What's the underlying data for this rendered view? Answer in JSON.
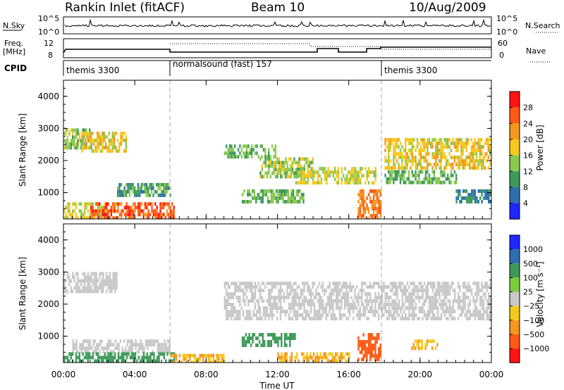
{
  "header": {
    "station": "Rankin Inlet (fitACF)",
    "beam": "Beam 10",
    "date": "10/Aug/2009"
  },
  "strips": {
    "nsky": {
      "label": "N.Sky",
      "ticks": [
        "10^5",
        "10^0"
      ],
      "right_label": "N.Search",
      "right_ticks": [
        "10^5",
        "10^0"
      ]
    },
    "freq": {
      "label": "Freq.",
      "unit": "[MHz]",
      "ticks": [
        "12",
        "8"
      ],
      "right_label": "Nave",
      "right_ticks": [
        "60",
        "0"
      ]
    },
    "cpid": {
      "label": "CPID",
      "segments": [
        {
          "start": 0.0,
          "end": 6.0,
          "name": "themis 3300"
        },
        {
          "start": 6.0,
          "end": 18.0,
          "name": "normalsound (fast) 157"
        },
        {
          "start": 18.0,
          "end": 24.0,
          "name": "themis 3300"
        }
      ]
    }
  },
  "panels": {
    "power": {
      "ylabel": "Slant Range [km]",
      "cblabel": "Power [dB]",
      "cbticks": [
        "28",
        "24",
        "20",
        "16",
        "12",
        "8",
        "4"
      ]
    },
    "velocity": {
      "ylabel": "Slant Range [km]",
      "cblabel": "Velocity [m s⁻¹]",
      "cbticks": [
        "1000",
        "500",
        "100",
        "25",
        "−25",
        "−100",
        "−500",
        "−1000"
      ]
    }
  },
  "colors": {
    "power_scale": [
      "#1e28ff",
      "#2e6fb0",
      "#3d9a5a",
      "#8cc850",
      "#f5c81e",
      "#f5961e",
      "#ff5a14",
      "#ff1414"
    ],
    "velocity_scale": [
      "#1e28ff",
      "#2e6fb0",
      "#3d9a5a",
      "#7ccd3c",
      "#c8c8c8",
      "#f5c81e",
      "#f5961e",
      "#ff5a14",
      "#ff1414"
    ]
  },
  "chart_data": [
    {
      "type": "heatmap",
      "title": "Power",
      "xlabel": "Time UT",
      "ylabel": "Slant Range [km]",
      "xlim": [
        0,
        24
      ],
      "ylim": [
        180,
        4500
      ],
      "xticks": [
        "00:00",
        "04:00",
        "08:00",
        "12:00",
        "16:00",
        "20:00",
        "00:00"
      ],
      "yticks": [
        1000,
        2000,
        3000,
        4000
      ],
      "colorbar": {
        "label": "Power [dB]",
        "ticks": [
          4,
          8,
          12,
          16,
          20,
          24,
          28
        ]
      },
      "regions": [
        {
          "t": [
            0.0,
            1.6
          ],
          "r": [
            2450,
            3000
          ],
          "value": 14
        },
        {
          "t": [
            1.0,
            3.5
          ],
          "r": [
            2300,
            2900
          ],
          "value": 18
        },
        {
          "t": [
            0.0,
            2.5
          ],
          "r": [
            200,
            700
          ],
          "value": 16
        },
        {
          "t": [
            1.5,
            6.2
          ],
          "r": [
            200,
            700
          ],
          "value": 26
        },
        {
          "t": [
            3.0,
            6.0
          ],
          "r": [
            900,
            1300
          ],
          "value": 10
        },
        {
          "t": [
            9.0,
            12.0
          ],
          "r": [
            2100,
            2500
          ],
          "value": 12
        },
        {
          "t": [
            11.0,
            14.0
          ],
          "r": [
            1500,
            2100
          ],
          "value": 14
        },
        {
          "t": [
            13.0,
            17.5
          ],
          "r": [
            1300,
            1800
          ],
          "value": 16
        },
        {
          "t": [
            10.0,
            13.5
          ],
          "r": [
            700,
            1100
          ],
          "value": 12
        },
        {
          "t": [
            16.5,
            17.8
          ],
          "r": [
            200,
            1100
          ],
          "value": 24
        },
        {
          "t": [
            18.0,
            24.0
          ],
          "r": [
            1800,
            2700
          ],
          "value": 18
        },
        {
          "t": [
            18.0,
            22.0
          ],
          "r": [
            1300,
            1700
          ],
          "value": 12
        },
        {
          "t": [
            22.0,
            24.0
          ],
          "r": [
            700,
            1100
          ],
          "value": 8
        }
      ]
    },
    {
      "type": "heatmap",
      "title": "Velocity",
      "xlabel": "Time UT",
      "ylabel": "Slant Range [km]",
      "xlim": [
        0,
        24
      ],
      "ylim": [
        180,
        4500
      ],
      "xticks": [
        "00:00",
        "04:00",
        "08:00",
        "12:00",
        "16:00",
        "20:00",
        "00:00"
      ],
      "yticks": [
        1000,
        2000,
        3000,
        4000
      ],
      "colorbar": {
        "label": "Velocity [m s⁻¹]",
        "ticks": [
          1000,
          500,
          100,
          25,
          -25,
          -100,
          -500,
          -1000
        ]
      },
      "regions": [
        {
          "t": [
            0.0,
            3.0
          ],
          "r": [
            2400,
            3000
          ],
          "value": 0
        },
        {
          "t": [
            0.5,
            6.0
          ],
          "r": [
            500,
            900
          ],
          "value": 0
        },
        {
          "t": [
            0.0,
            6.2
          ],
          "r": [
            200,
            500
          ],
          "value": 150
        },
        {
          "t": [
            6.0,
            9.0
          ],
          "r": [
            200,
            450
          ],
          "value": -60
        },
        {
          "t": [
            9.0,
            24.0
          ],
          "r": [
            1500,
            2700
          ],
          "value": 0
        },
        {
          "t": [
            10.0,
            13.0
          ],
          "r": [
            700,
            1100
          ],
          "value": 120
        },
        {
          "t": [
            16.5,
            17.8
          ],
          "r": [
            300,
            1100
          ],
          "value": -400
        },
        {
          "t": [
            12.0,
            16.0
          ],
          "r": [
            200,
            500
          ],
          "value": -60
        },
        {
          "t": [
            19.5,
            21.0
          ],
          "r": [
            600,
            900
          ],
          "value": -60
        }
      ]
    }
  ]
}
